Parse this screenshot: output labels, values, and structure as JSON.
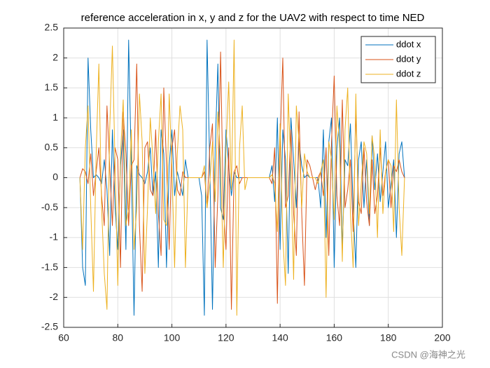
{
  "chart_data": {
    "type": "line",
    "title": "reference acceleration in x, y and z for the UAV2 with respect to time NED",
    "annotation": "CSDN @海神之光",
    "x": [
      66,
      67,
      68,
      69,
      70,
      71,
      72,
      73,
      74,
      75,
      76,
      77,
      78,
      79,
      80,
      81,
      82,
      83,
      84,
      85,
      86,
      87,
      88,
      89,
      90,
      91,
      92,
      93,
      94,
      95,
      96,
      97,
      98,
      99,
      100,
      101,
      102,
      103,
      104,
      105,
      106,
      107,
      108,
      109,
      110,
      111,
      112,
      113,
      114,
      115,
      116,
      117,
      118,
      119,
      120,
      121,
      122,
      123,
      124,
      125,
      126,
      127,
      128,
      129,
      130,
      131,
      132,
      133,
      134,
      135,
      136,
      137,
      138,
      139,
      140,
      141,
      142,
      143,
      144,
      145,
      146,
      147,
      148,
      149,
      150,
      151,
      152,
      153,
      154,
      155,
      156,
      157,
      158,
      159,
      160,
      161,
      162,
      163,
      164,
      165,
      166,
      167,
      168,
      169,
      170,
      171,
      172,
      173,
      174,
      175,
      176,
      177,
      178,
      179,
      180,
      181,
      182,
      183,
      184,
      185,
      186
    ],
    "series": [
      {
        "name": "ddot x",
        "color": "#0072bd",
        "values": [
          0,
          -1.5,
          -1.8,
          2.0,
          0.8,
          0,
          0.05,
          0,
          -0.1,
          0.3,
          -0.2,
          -1.3,
          0.8,
          -0.5,
          -1.2,
          0.2,
          0.8,
          -1.2,
          2.3,
          0.2,
          -2.3,
          0.2,
          0.05,
          0,
          -0.1,
          0.1,
          0.5,
          -0.3,
          0.1,
          -1.5,
          0.8,
          0.4,
          -1.5,
          0.2,
          0.8,
          -0.3,
          0.1,
          -0.1,
          -0.3,
          0.3,
          0,
          0,
          0,
          0,
          0,
          -0.3,
          -2.3,
          2.3,
          0.2,
          -2.2,
          0.5,
          1.9,
          -0.5,
          -0.7,
          0.8,
          0.2,
          -0.3,
          0.1,
          0,
          0,
          0,
          0,
          0,
          0,
          0,
          0,
          0,
          0,
          0,
          0,
          0,
          0.2,
          -0.4,
          1.0,
          -1.2,
          0.8,
          0.3,
          -1.6,
          1.0,
          0.3,
          -0.5,
          0.6,
          0.2,
          0,
          0.05,
          0,
          0,
          0,
          0,
          -0.5,
          0.8,
          -1.0,
          0.6,
          1.0,
          -1.5,
          0.5,
          1.0,
          -1.2,
          0.3,
          0.2,
          0.9,
          -0.5,
          -1.5,
          0.3,
          0.6,
          -0.5,
          0.3,
          -0.8,
          0.7,
          -0.2,
          0.4,
          -0.4,
          0.1,
          0.6,
          -0.5,
          -0.1,
          0.3,
          -1.0,
          0.4,
          0.6,
          0
        ]
      },
      {
        "name": "ddot y",
        "color": "#d95319",
        "values": [
          0,
          0.15,
          0.1,
          -0.1,
          0.4,
          -0.3,
          0.1,
          0.5,
          -0.3,
          -0.8,
          1.2,
          0.2,
          -0.8,
          0.5,
          0.3,
          -1.5,
          1.1,
          0.4,
          -0.8,
          0.2,
          0.3,
          1.9,
          -0.8,
          -1.9,
          0.5,
          0.6,
          -0.2,
          -0.3,
          0.8,
          -0.6,
          -1.3,
          1.5,
          0.2,
          -1.2,
          0.5,
          0.8,
          -0.2,
          -0.3,
          0.1,
          0,
          0,
          0,
          0,
          0,
          0,
          0,
          0.1,
          -0.5,
          0.5,
          0.9,
          -1.5,
          -0.3,
          2.1,
          -0.5,
          -1.2,
          0.5,
          -2.2,
          0.1,
          0.2,
          -0.1,
          0,
          0,
          0,
          0,
          0,
          0,
          0,
          0,
          0,
          0,
          0,
          -0.1,
          0.5,
          -2.1,
          0.6,
          2.0,
          -0.5,
          -0.3,
          0.8,
          -0.6,
          -1.3,
          1.1,
          -0.6,
          -1.8,
          0.3,
          0.2,
          0,
          -0.2,
          0,
          0.1,
          -0.3,
          0.5,
          -1.3,
          0.6,
          1.7,
          -0.3,
          -0.8,
          1.3,
          -0.5,
          -0.2,
          0.3,
          -0.9,
          1.1,
          -0.4,
          -0.6,
          0.5,
          -0.4,
          -0.8,
          0.3,
          -0.6,
          -0.3,
          0.5,
          -0.3,
          0.1,
          0.3,
          -0.5,
          0.2,
          0.1,
          0.3,
          0.1,
          0
        ]
      },
      {
        "name": "ddot z",
        "color": "#edb120",
        "values": [
          0,
          -1.2,
          0.5,
          1.2,
          -0.5,
          -1.9,
          0.4,
          1.9,
          -0.5,
          -1.6,
          -2.2,
          0.8,
          2.2,
          0.2,
          -1.8,
          0.4,
          1.3,
          -0.8,
          -0.5,
          0.8,
          -1.2,
          -0.5,
          1.4,
          0.6,
          -1.6,
          -0.5,
          1.0,
          0.3,
          -0.6,
          0.6,
          1.4,
          -0.7,
          -0.8,
          1.4,
          0.2,
          -1.5,
          0.4,
          1.2,
          0.8,
          -1.5,
          0,
          0,
          0,
          0,
          0,
          0,
          0.2,
          -0.5,
          -0.1,
          0.6,
          -0.4,
          1.1,
          0.3,
          -1.5,
          0.5,
          1.6,
          -0.2,
          2.3,
          -2.3,
          0.5,
          1.2,
          -0.2,
          0,
          0,
          0,
          0,
          0,
          0,
          0,
          0,
          0,
          0.05,
          -0.1,
          -0.9,
          0.9,
          -1.0,
          -1.8,
          1.4,
          0.1,
          -1.7,
          1.2,
          0.6,
          -0.5,
          0.4,
          0.1,
          0,
          0,
          0,
          -0.1,
          0.1,
          0.3,
          -2.0,
          0.6,
          0.3,
          -0.7,
          1.2,
          0.5,
          -1.4,
          0.8,
          1.5,
          -0.6,
          -1.5,
          1.4,
          -0.8,
          -0.1,
          0.6,
          0.4,
          -0.6,
          0.7,
          0.3,
          -1.0,
          0.8,
          -0.6,
          0.1,
          0.3,
          0.2,
          -0.9,
          1.3,
          -0.5,
          -1.3,
          0
        ]
      }
    ],
    "xlim": [
      60,
      200
    ],
    "xticks": [
      60,
      80,
      100,
      120,
      140,
      160,
      180,
      200
    ],
    "ylim": [
      -2.5,
      2.5
    ],
    "yticks": [
      -2.5,
      -2,
      -1.5,
      -1,
      -0.5,
      0,
      0.5,
      1,
      1.5,
      2,
      2.5
    ],
    "grid": true,
    "legend": "northeast"
  }
}
